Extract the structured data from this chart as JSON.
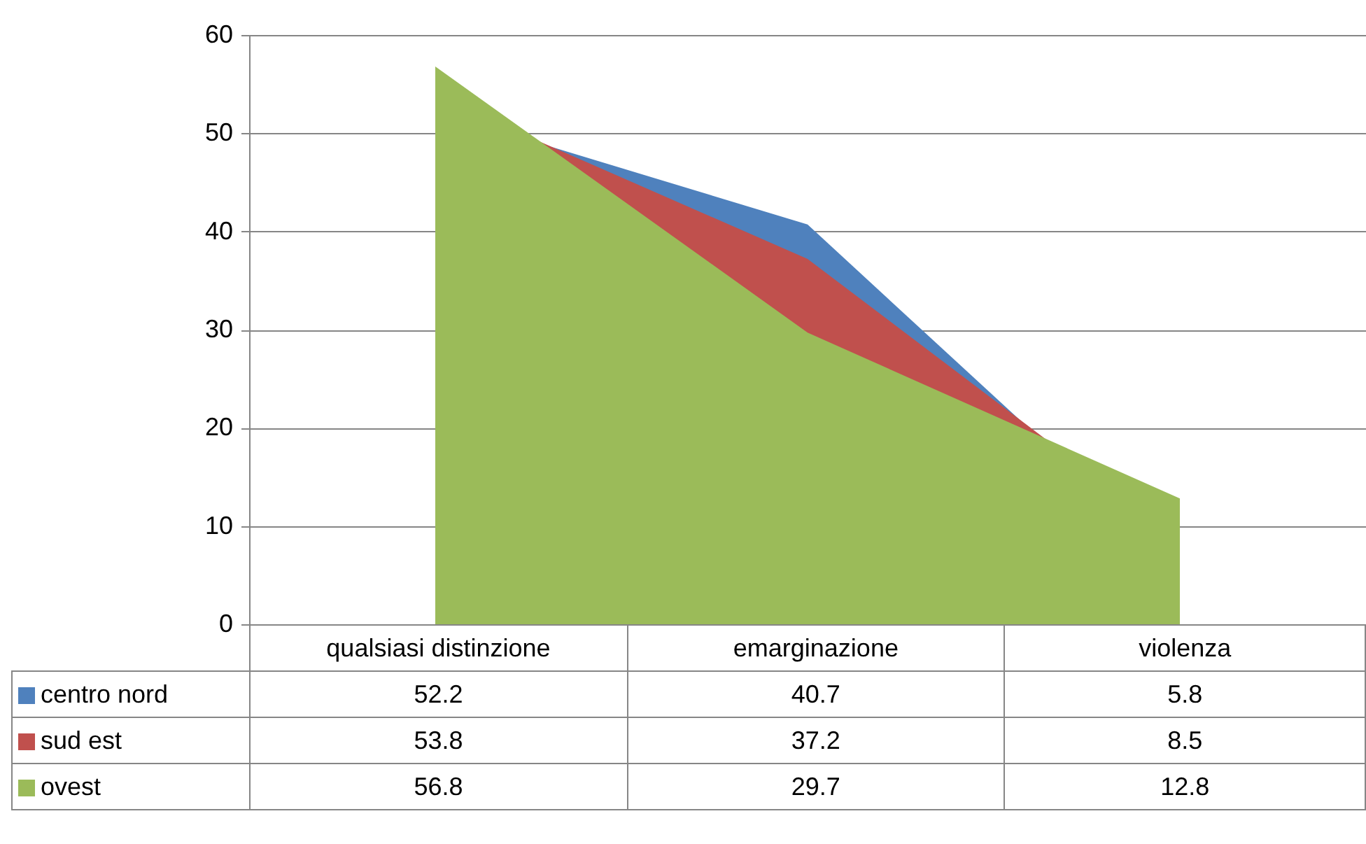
{
  "chart_data": {
    "type": "area",
    "categories": [
      "qualsiasi distinzione",
      "emarginazione",
      "violenza"
    ],
    "series": [
      {
        "name": "centro nord",
        "color": "#4f81bd",
        "values": [
          52.2,
          40.7,
          5.8
        ]
      },
      {
        "name": "sud est",
        "color": "#c0504d",
        "values": [
          53.8,
          37.2,
          8.5
        ]
      },
      {
        "name": "ovest",
        "color": "#9bbb59",
        "values": [
          56.8,
          29.7,
          12.8
        ]
      }
    ],
    "ylim": [
      0,
      60
    ],
    "yticks": [
      0,
      10,
      20,
      30,
      40,
      50,
      60
    ],
    "grid": "y",
    "legend": "bottom left",
    "data_labels": true
  }
}
